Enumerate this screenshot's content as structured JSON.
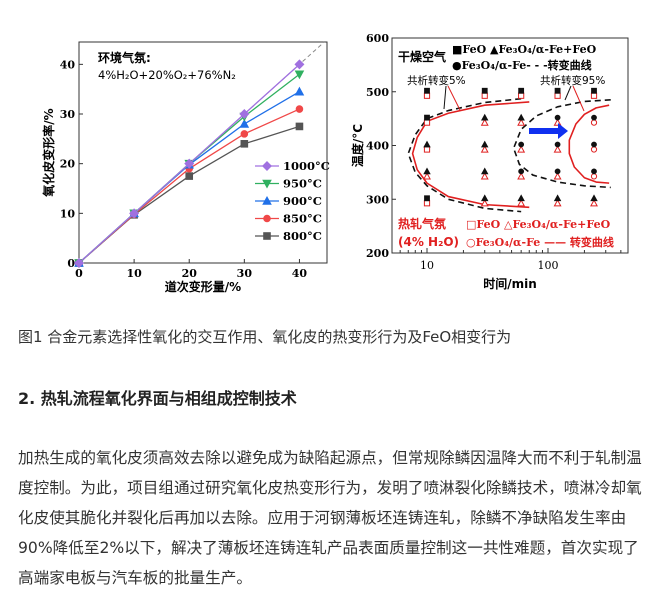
{
  "chart_data": [
    {
      "type": "line",
      "title": "",
      "xlabel": "道次变形量/%",
      "ylabel": "氧化皮变形率/%",
      "xlim": [
        0,
        45
      ],
      "ylim": [
        0,
        44.5
      ],
      "xticks": [
        "0",
        "10",
        "20",
        "30",
        "40"
      ],
      "yticks": [
        "0",
        "10",
        "20",
        "30",
        "40"
      ],
      "annotation": {
        "line1": "环境气氛:",
        "line2": "4%H₂O+20%O₂+76%N₂"
      },
      "reference_line": {
        "style": "dashed",
        "slope": 1,
        "color": "#888888"
      },
      "x": [
        0,
        10,
        20,
        30,
        40
      ],
      "legend_placement": "bottom-right",
      "series": [
        {
          "name": "1000°C",
          "values": [
            0,
            10,
            20,
            30,
            40
          ],
          "color": "#a070e0",
          "marker": "diamond"
        },
        {
          "name": "950°C",
          "values": [
            0,
            10,
            20,
            29.5,
            38
          ],
          "color": "#30b060",
          "marker": "triangle-down"
        },
        {
          "name": "900°C",
          "values": [
            0,
            10,
            19.8,
            28,
            34.5
          ],
          "color": "#2070e8",
          "marker": "triangle-up"
        },
        {
          "name": "850°C",
          "values": [
            0,
            9.8,
            19,
            26,
            31
          ],
          "color": "#f04848",
          "marker": "circle"
        },
        {
          "name": "800°C",
          "values": [
            0,
            9.7,
            17.5,
            24,
            27.5
          ],
          "color": "#555555",
          "marker": "square"
        }
      ]
    },
    {
      "type": "scatter",
      "title": "",
      "xlabel": "时间/min",
      "ylabel": "温度/°C",
      "xscale": "log",
      "xlim": [
        5.1,
        460
      ],
      "ylim": [
        200,
        600
      ],
      "xticks": [
        "10",
        "100"
      ],
      "yticks": [
        "200",
        "300",
        "400",
        "500",
        "600"
      ],
      "times": [
        10,
        30,
        60,
        120,
        240
      ],
      "temps": [
        500,
        450,
        400,
        350,
        300
      ],
      "dry": {
        "label": "干燥空气",
        "legend1": "■FeO ▲Fe₃O₄/α-Fe+FeO",
        "legend2": "●Fe₃O₄/α-Fe- - -转变曲线",
        "color": "#111111",
        "phases": [
          [
            "FeO",
            "FeO",
            "FeO",
            "FeO",
            "FeO"
          ],
          [
            "FeO",
            "Fe3O4/α-Fe+FeO",
            "Fe3O4/α-Fe+FeO",
            "Fe3O4/α-Fe",
            "Fe3O4/α-Fe"
          ],
          [
            "Fe3O4/α-Fe+FeO",
            "Fe3O4/α-Fe+FeO",
            "Fe3O4/α-Fe",
            "Fe3O4/α-Fe",
            "Fe3O4/α-Fe"
          ],
          [
            "Fe3O4/α-Fe+FeO",
            "Fe3O4/α-Fe+FeO",
            "Fe3O4/α-Fe",
            "Fe3O4/α-Fe",
            "Fe3O4/α-Fe"
          ],
          [
            "FeO",
            "Fe3O4/α-Fe+FeO",
            "Fe3O4/α-Fe+FeO",
            "Fe3O4/α-Fe+FeO",
            "Fe3O4/α-Fe+FeO"
          ]
        ],
        "curve_5": [
          [
            60,
            487
          ],
          [
            30,
            480
          ],
          [
            15,
            465
          ],
          [
            10,
            450
          ],
          [
            8,
            420
          ],
          [
            7,
            385
          ],
          [
            8,
            350
          ],
          [
            10,
            325
          ],
          [
            15,
            300
          ],
          [
            30,
            283
          ],
          [
            60,
            277
          ]
        ],
        "curve_95": [
          [
            330,
            485
          ],
          [
            200,
            482
          ],
          [
            120,
            472
          ],
          [
            80,
            455
          ],
          [
            60,
            430
          ],
          [
            52,
            395
          ],
          [
            58,
            365
          ],
          [
            75,
            345
          ],
          [
            120,
            332
          ],
          [
            200,
            325
          ],
          [
            330,
            322
          ]
        ]
      },
      "hot": {
        "label": "热轧气氛",
        "label2": "(4% H₂O)",
        "legend1": "□FeO △Fe₃O₄/α-Fe+FeO",
        "legend2": "○Fe₃O₄/α-Fe —— 转变曲线",
        "color": "#e02020",
        "phases": [
          [
            "FeO",
            "FeO",
            "FeO",
            "FeO",
            "FeO"
          ],
          [
            "FeO",
            "Fe3O4/α-Fe+FeO",
            "Fe3O4/α-Fe+FeO",
            "Fe3O4/α-Fe+FeO",
            "Fe3O4/α-Fe"
          ],
          [
            "FeO",
            "Fe3O4/α-Fe+FeO",
            "Fe3O4/α-Fe+FeO",
            "Fe3O4/α-Fe+FeO",
            "Fe3O4/α-Fe"
          ],
          [
            "Fe3O4/α-Fe+FeO",
            "Fe3O4/α-Fe+FeO",
            "Fe3O4/α-Fe+FeO",
            "Fe3O4/α-Fe+FeO",
            "Fe3O4/α-Fe"
          ],
          [
            "FeO",
            "Fe3O4/α-Fe+FeO",
            "Fe3O4/α-Fe+FeO",
            "Fe3O4/α-Fe+FeO",
            "Fe3O4/α-Fe+FeO"
          ]
        ],
        "curve_5": [
          [
            70,
            481
          ],
          [
            30,
            475
          ],
          [
            15,
            460
          ],
          [
            10,
            445
          ],
          [
            8.3,
            415
          ],
          [
            7.6,
            385
          ],
          [
            8.3,
            355
          ],
          [
            10,
            330
          ],
          [
            15,
            305
          ],
          [
            30,
            290
          ],
          [
            70,
            285
          ]
        ],
        "curve_95": [
          [
            320,
            475
          ],
          [
            250,
            470
          ],
          [
            200,
            458
          ],
          [
            170,
            440
          ],
          [
            150,
            410
          ],
          [
            150,
            385
          ],
          [
            165,
            360
          ],
          [
            200,
            340
          ],
          [
            250,
            332
          ],
          [
            320,
            330
          ]
        ]
      },
      "annotations": {
        "eutectoid_5": "共析转变5%",
        "eutectoid_95": "共析转变95%"
      },
      "shift_arrow_color": "#1030f0"
    }
  ],
  "caption": "图1 合金元素选择性氧化的交互作用、氧化皮的热变形行为及FeO相变行为",
  "section_heading": "2. 热轧流程氧化界面与相组成控制技术",
  "paragraph_lines": [
    "加热生成的氧化皮须高效去除以避免成为缺陷起源点，但常规除鳞因温降大而不利于轧制温",
    "度控制。为此，项目组通过研究氧化皮热变形行为，发明了喷淋裂化除鳞技术，喷淋冷却氧",
    "化皮使其脆化并裂化后再加以去除。应用于河钢薄板坯连铸连轧，除鳞不净缺陷发生率由",
    "90%降低至2%以下，解决了薄板坯连铸连轧产品表面质量控制这一共性难题，首次实现了",
    "高端家电板与汽车板的批量生产。"
  ]
}
